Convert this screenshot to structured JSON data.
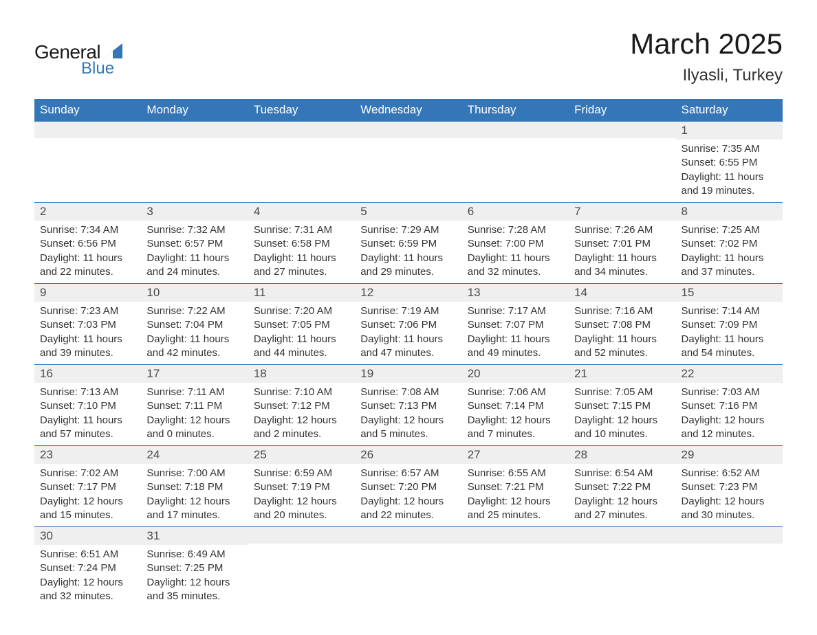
{
  "logo": {
    "text_general": "General",
    "text_blue": "Blue",
    "shape_color": "#3576b8"
  },
  "title": "March 2025",
  "location": "Ilyasli, Turkey",
  "colors": {
    "header_bg": "#3576b8",
    "header_text": "#ffffff",
    "daynum_bg": "#efefef",
    "body_text": "#333333",
    "page_bg": "#ffffff",
    "border": "#3576b8"
  },
  "typography": {
    "title_fontsize": 42,
    "location_fontsize": 24,
    "header_fontsize": 17,
    "daynum_fontsize": 17,
    "content_fontsize": 15
  },
  "weekdays": [
    "Sunday",
    "Monday",
    "Tuesday",
    "Wednesday",
    "Thursday",
    "Friday",
    "Saturday"
  ],
  "weeks": [
    [
      {
        "day": "",
        "sunrise": "",
        "sunset": "",
        "daylight": ""
      },
      {
        "day": "",
        "sunrise": "",
        "sunset": "",
        "daylight": ""
      },
      {
        "day": "",
        "sunrise": "",
        "sunset": "",
        "daylight": ""
      },
      {
        "day": "",
        "sunrise": "",
        "sunset": "",
        "daylight": ""
      },
      {
        "day": "",
        "sunrise": "",
        "sunset": "",
        "daylight": ""
      },
      {
        "day": "",
        "sunrise": "",
        "sunset": "",
        "daylight": ""
      },
      {
        "day": "1",
        "sunrise": "Sunrise: 7:35 AM",
        "sunset": "Sunset: 6:55 PM",
        "daylight": "Daylight: 11 hours and 19 minutes."
      }
    ],
    [
      {
        "day": "2",
        "sunrise": "Sunrise: 7:34 AM",
        "sunset": "Sunset: 6:56 PM",
        "daylight": "Daylight: 11 hours and 22 minutes."
      },
      {
        "day": "3",
        "sunrise": "Sunrise: 7:32 AM",
        "sunset": "Sunset: 6:57 PM",
        "daylight": "Daylight: 11 hours and 24 minutes."
      },
      {
        "day": "4",
        "sunrise": "Sunrise: 7:31 AM",
        "sunset": "Sunset: 6:58 PM",
        "daylight": "Daylight: 11 hours and 27 minutes."
      },
      {
        "day": "5",
        "sunrise": "Sunrise: 7:29 AM",
        "sunset": "Sunset: 6:59 PM",
        "daylight": "Daylight: 11 hours and 29 minutes."
      },
      {
        "day": "6",
        "sunrise": "Sunrise: 7:28 AM",
        "sunset": "Sunset: 7:00 PM",
        "daylight": "Daylight: 11 hours and 32 minutes."
      },
      {
        "day": "7",
        "sunrise": "Sunrise: 7:26 AM",
        "sunset": "Sunset: 7:01 PM",
        "daylight": "Daylight: 11 hours and 34 minutes."
      },
      {
        "day": "8",
        "sunrise": "Sunrise: 7:25 AM",
        "sunset": "Sunset: 7:02 PM",
        "daylight": "Daylight: 11 hours and 37 minutes."
      }
    ],
    [
      {
        "day": "9",
        "sunrise": "Sunrise: 7:23 AM",
        "sunset": "Sunset: 7:03 PM",
        "daylight": "Daylight: 11 hours and 39 minutes."
      },
      {
        "day": "10",
        "sunrise": "Sunrise: 7:22 AM",
        "sunset": "Sunset: 7:04 PM",
        "daylight": "Daylight: 11 hours and 42 minutes."
      },
      {
        "day": "11",
        "sunrise": "Sunrise: 7:20 AM",
        "sunset": "Sunset: 7:05 PM",
        "daylight": "Daylight: 11 hours and 44 minutes."
      },
      {
        "day": "12",
        "sunrise": "Sunrise: 7:19 AM",
        "sunset": "Sunset: 7:06 PM",
        "daylight": "Daylight: 11 hours and 47 minutes."
      },
      {
        "day": "13",
        "sunrise": "Sunrise: 7:17 AM",
        "sunset": "Sunset: 7:07 PM",
        "daylight": "Daylight: 11 hours and 49 minutes."
      },
      {
        "day": "14",
        "sunrise": "Sunrise: 7:16 AM",
        "sunset": "Sunset: 7:08 PM",
        "daylight": "Daylight: 11 hours and 52 minutes."
      },
      {
        "day": "15",
        "sunrise": "Sunrise: 7:14 AM",
        "sunset": "Sunset: 7:09 PM",
        "daylight": "Daylight: 11 hours and 54 minutes."
      }
    ],
    [
      {
        "day": "16",
        "sunrise": "Sunrise: 7:13 AM",
        "sunset": "Sunset: 7:10 PM",
        "daylight": "Daylight: 11 hours and 57 minutes."
      },
      {
        "day": "17",
        "sunrise": "Sunrise: 7:11 AM",
        "sunset": "Sunset: 7:11 PM",
        "daylight": "Daylight: 12 hours and 0 minutes."
      },
      {
        "day": "18",
        "sunrise": "Sunrise: 7:10 AM",
        "sunset": "Sunset: 7:12 PM",
        "daylight": "Daylight: 12 hours and 2 minutes."
      },
      {
        "day": "19",
        "sunrise": "Sunrise: 7:08 AM",
        "sunset": "Sunset: 7:13 PM",
        "daylight": "Daylight: 12 hours and 5 minutes."
      },
      {
        "day": "20",
        "sunrise": "Sunrise: 7:06 AM",
        "sunset": "Sunset: 7:14 PM",
        "daylight": "Daylight: 12 hours and 7 minutes."
      },
      {
        "day": "21",
        "sunrise": "Sunrise: 7:05 AM",
        "sunset": "Sunset: 7:15 PM",
        "daylight": "Daylight: 12 hours and 10 minutes."
      },
      {
        "day": "22",
        "sunrise": "Sunrise: 7:03 AM",
        "sunset": "Sunset: 7:16 PM",
        "daylight": "Daylight: 12 hours and 12 minutes."
      }
    ],
    [
      {
        "day": "23",
        "sunrise": "Sunrise: 7:02 AM",
        "sunset": "Sunset: 7:17 PM",
        "daylight": "Daylight: 12 hours and 15 minutes."
      },
      {
        "day": "24",
        "sunrise": "Sunrise: 7:00 AM",
        "sunset": "Sunset: 7:18 PM",
        "daylight": "Daylight: 12 hours and 17 minutes."
      },
      {
        "day": "25",
        "sunrise": "Sunrise: 6:59 AM",
        "sunset": "Sunset: 7:19 PM",
        "daylight": "Daylight: 12 hours and 20 minutes."
      },
      {
        "day": "26",
        "sunrise": "Sunrise: 6:57 AM",
        "sunset": "Sunset: 7:20 PM",
        "daylight": "Daylight: 12 hours and 22 minutes."
      },
      {
        "day": "27",
        "sunrise": "Sunrise: 6:55 AM",
        "sunset": "Sunset: 7:21 PM",
        "daylight": "Daylight: 12 hours and 25 minutes."
      },
      {
        "day": "28",
        "sunrise": "Sunrise: 6:54 AM",
        "sunset": "Sunset: 7:22 PM",
        "daylight": "Daylight: 12 hours and 27 minutes."
      },
      {
        "day": "29",
        "sunrise": "Sunrise: 6:52 AM",
        "sunset": "Sunset: 7:23 PM",
        "daylight": "Daylight: 12 hours and 30 minutes."
      }
    ],
    [
      {
        "day": "30",
        "sunrise": "Sunrise: 6:51 AM",
        "sunset": "Sunset: 7:24 PM",
        "daylight": "Daylight: 12 hours and 32 minutes."
      },
      {
        "day": "31",
        "sunrise": "Sunrise: 6:49 AM",
        "sunset": "Sunset: 7:25 PM",
        "daylight": "Daylight: 12 hours and 35 minutes."
      },
      {
        "day": "",
        "sunrise": "",
        "sunset": "",
        "daylight": ""
      },
      {
        "day": "",
        "sunrise": "",
        "sunset": "",
        "daylight": ""
      },
      {
        "day": "",
        "sunrise": "",
        "sunset": "",
        "daylight": ""
      },
      {
        "day": "",
        "sunrise": "",
        "sunset": "",
        "daylight": ""
      },
      {
        "day": "",
        "sunrise": "",
        "sunset": "",
        "daylight": ""
      }
    ]
  ]
}
